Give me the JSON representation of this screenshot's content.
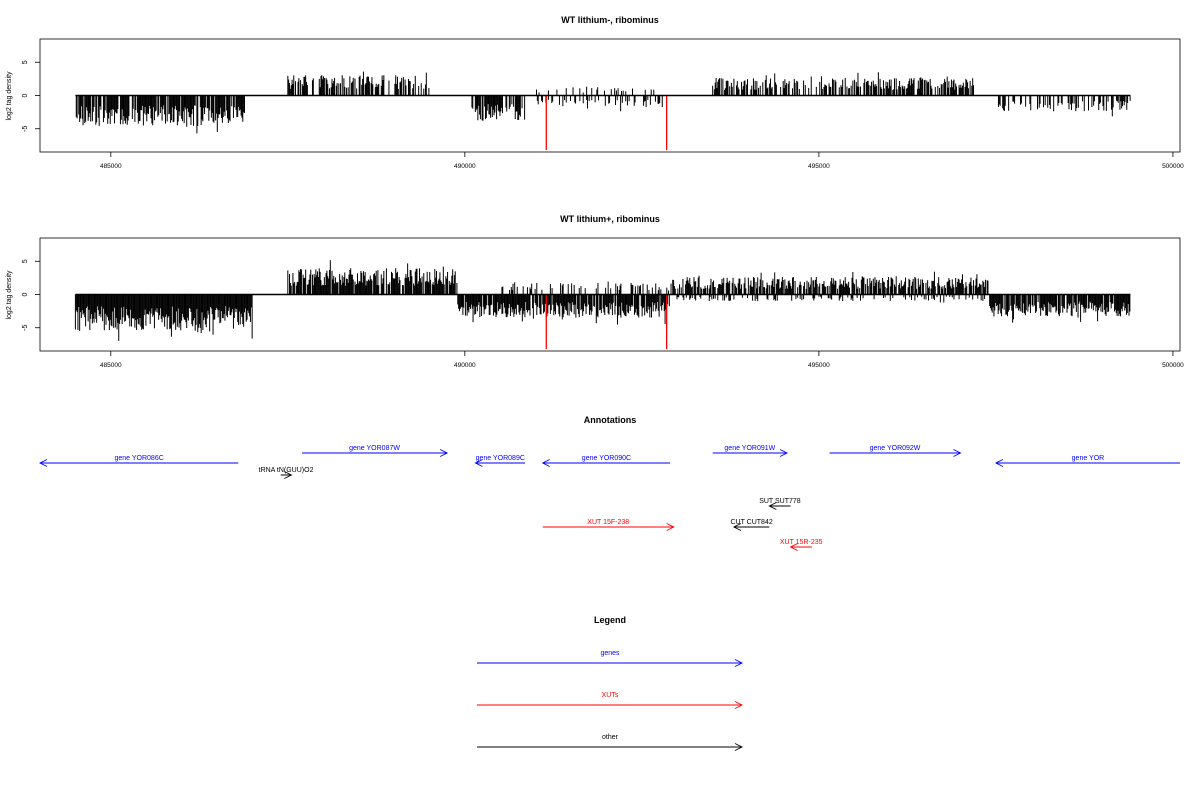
{
  "chart_data": [
    {
      "type": "bar",
      "title": "WT lithium-, ribominus",
      "xlabel": "",
      "ylabel": "log2 tag density",
      "xlim": [
        484000,
        500100
      ],
      "ylim": [
        -8.5,
        8.5
      ],
      "xticks": [
        485000,
        490000,
        495000,
        500000
      ],
      "yticks": [
        -5,
        0,
        5
      ],
      "xtick_labels": [
        "485000",
        "490000",
        "495000",
        "500000"
      ],
      "ytick_labels": [
        "-5",
        "0",
        "5"
      ],
      "baseline": {
        "x": [
          484500,
          499400
        ],
        "y": 0
      },
      "segments": [
        {
          "start": 484500,
          "end": 486900,
          "sign": -1,
          "level": 4.2,
          "density": 0.85
        },
        {
          "start": 487500,
          "end": 489500,
          "sign": 1,
          "level": 2.8,
          "density": 0.6
        },
        {
          "start": 490100,
          "end": 490850,
          "sign": -1,
          "level": 3.5,
          "density": 0.8
        },
        {
          "start": 491000,
          "end": 492800,
          "sign": -1,
          "level": 1.6,
          "density": 0.35
        },
        {
          "start": 491000,
          "end": 492800,
          "sign": 1,
          "level": 1.2,
          "density": 0.15
        },
        {
          "start": 493500,
          "end": 497200,
          "sign": 1,
          "level": 2.4,
          "density": 0.6
        },
        {
          "start": 497500,
          "end": 499400,
          "sign": -1,
          "level": 2.2,
          "density": 0.4
        }
      ],
      "highlights": [
        {
          "x": 491150,
          "y": -8.2,
          "color": "#ff0000"
        },
        {
          "x": 492850,
          "y": -8.2,
          "color": "#ff0000"
        }
      ],
      "color": "#000000"
    },
    {
      "type": "bar",
      "title": "WT lithium+, ribominus",
      "xlabel": "",
      "ylabel": "log2 tag density",
      "xlim": [
        484000,
        500100
      ],
      "ylim": [
        -8.5,
        8.5
      ],
      "xticks": [
        485000,
        490000,
        495000,
        500000
      ],
      "yticks": [
        -5,
        0,
        5
      ],
      "xtick_labels": [
        "485000",
        "490000",
        "495000",
        "500000"
      ],
      "ytick_labels": [
        "-5",
        "0",
        "5"
      ],
      "baseline": {
        "x": [
          484500,
          499400
        ],
        "y": 0
      },
      "segments": [
        {
          "start": 484500,
          "end": 487000,
          "sign": -1,
          "level": 5.0,
          "density": 1.0
        },
        {
          "start": 487500,
          "end": 489900,
          "sign": 1,
          "level": 3.6,
          "density": 0.9
        },
        {
          "start": 489900,
          "end": 492900,
          "sign": -1,
          "level": 3.2,
          "density": 0.9
        },
        {
          "start": 490500,
          "end": 492900,
          "sign": 1,
          "level": 1.6,
          "density": 0.3
        },
        {
          "start": 492900,
          "end": 497400,
          "sign": 1,
          "level": 2.4,
          "density": 0.75
        },
        {
          "start": 492900,
          "end": 497400,
          "sign": -1,
          "level": 0.9,
          "density": 0.25
        },
        {
          "start": 497400,
          "end": 499400,
          "sign": -1,
          "level": 3.0,
          "density": 0.85
        }
      ],
      "highlights": [
        {
          "x": 491150,
          "y": -8.2,
          "color": "#ff0000"
        },
        {
          "x": 492850,
          "y": -8.2,
          "color": "#ff0000"
        }
      ],
      "color": "#000000"
    }
  ],
  "annotations": {
    "title": "Annotations",
    "items": [
      {
        "label": "gene YOR086C",
        "start": 486800,
        "end": 484000,
        "row": 1,
        "color": "#0000ff"
      },
      {
        "label": "tRNA tN(GUU)O2",
        "start": 487400,
        "end": 487550,
        "row": 2,
        "color": "#000000"
      },
      {
        "label": "gene YOR087W",
        "start": 487700,
        "end": 489750,
        "row": 0,
        "color": "#0000ff"
      },
      {
        "label": "gene YOR089C",
        "start": 490850,
        "end": 490150,
        "row": 1,
        "color": "#0000ff"
      },
      {
        "label": "gene YOR090C",
        "start": 492900,
        "end": 491100,
        "row": 1,
        "color": "#0000ff"
      },
      {
        "label": "gene YOR091W",
        "start": 493500,
        "end": 494550,
        "row": 0,
        "color": "#0000ff"
      },
      {
        "label": "gene YOR092W",
        "start": 495150,
        "end": 497000,
        "row": 0,
        "color": "#0000ff"
      },
      {
        "label": "gene YOR",
        "start": 500100,
        "end": 497500,
        "row": 1,
        "color": "#0000ff"
      },
      {
        "label": "SUT SUT778",
        "start": 494600,
        "end": 494300,
        "row": 3,
        "color": "#000000"
      },
      {
        "label": "CUT CUT842",
        "start": 494300,
        "end": 493800,
        "row": 4,
        "color": "#000000"
      },
      {
        "label": "XUT 15F-238",
        "start": 491100,
        "end": 492950,
        "row": 4,
        "color": "#ff0000"
      },
      {
        "label": "XUT 15R-235",
        "start": 494900,
        "end": 494600,
        "row": 5,
        "color": "#ff0000"
      }
    ]
  },
  "legend": {
    "title": "Legend",
    "items": [
      {
        "label": "genes",
        "color": "#0000ff"
      },
      {
        "label": "XUTs",
        "color": "#ff0000"
      },
      {
        "label": "other",
        "color": "#000000"
      }
    ]
  }
}
